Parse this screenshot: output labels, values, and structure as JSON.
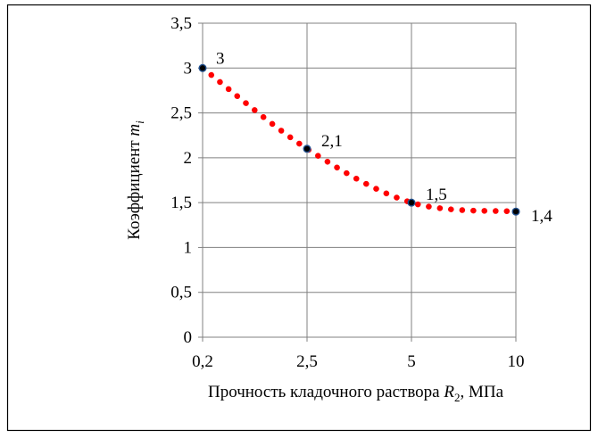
{
  "chart_data": {
    "type": "line",
    "title": "",
    "xlabel": {
      "prefix": "Прочность кладочного раствора ",
      "symbol": "R",
      "subscript": "2",
      "suffix": ",  МПа"
    },
    "ylabel": {
      "prefix": "Коэффициент  ",
      "symbol": "m",
      "subscript": "i"
    },
    "categories": [
      "0,2",
      "2,5",
      "5",
      "10"
    ],
    "ylim": [
      0,
      3.5
    ],
    "yticks": [
      {
        "value": 0,
        "label": "0"
      },
      {
        "value": 0.5,
        "label": "0,5"
      },
      {
        "value": 1,
        "label": "1"
      },
      {
        "value": 1.5,
        "label": "1,5"
      },
      {
        "value": 2,
        "label": "2"
      },
      {
        "value": 2.5,
        "label": "2,5"
      },
      {
        "value": 3,
        "label": "3"
      },
      {
        "value": 3.5,
        "label": "3,5"
      }
    ],
    "grid": true,
    "series": [
      {
        "values": [
          3,
          2.1,
          1.5,
          1.4
        ],
        "point_labels": [
          "3",
          "2,1",
          "1,5",
          "1,4"
        ],
        "line_style": "dotted",
        "line_color": "#ff0000",
        "marker_color": "#000000",
        "marker_edge": "#1f4e8c"
      }
    ]
  }
}
